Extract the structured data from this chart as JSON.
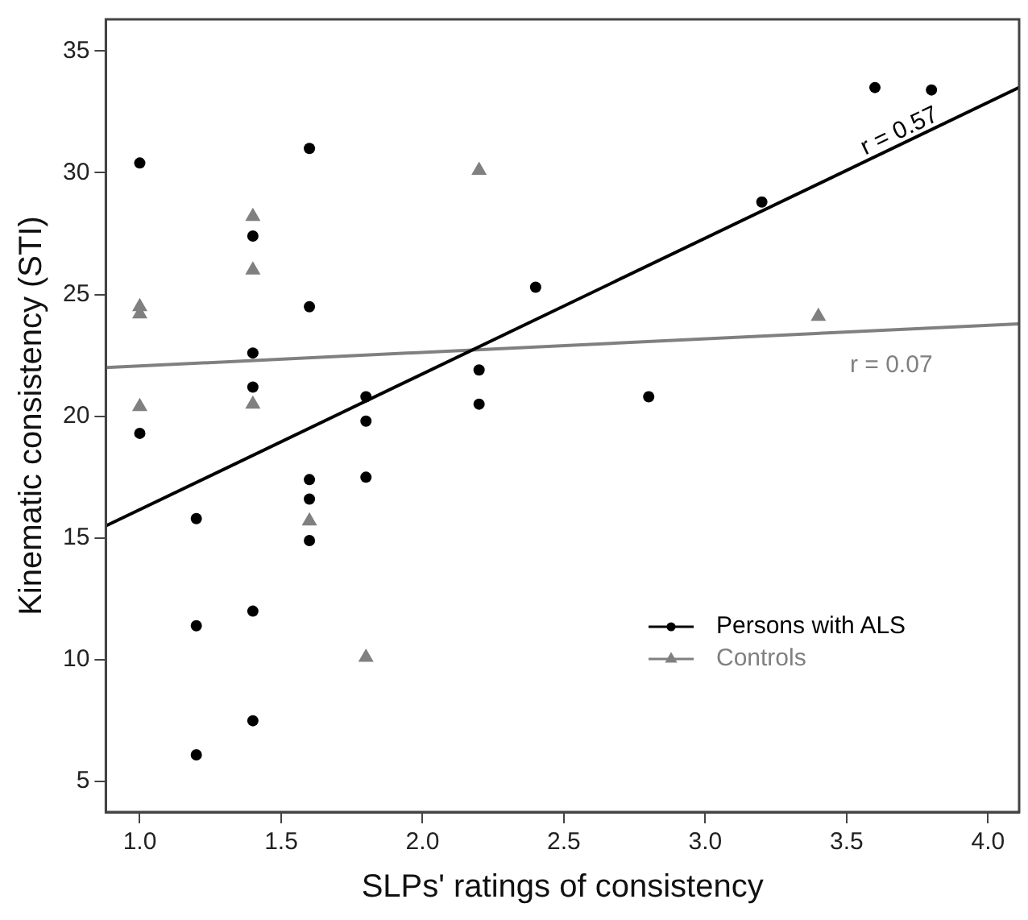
{
  "chart_data": {
    "type": "scatter",
    "xlabel": "SLPs' ratings of consistency",
    "ylabel": "Kinematic consistency (STI)",
    "xlim": [
      0.88,
      4.11
    ],
    "ylim": [
      3.75,
      36.3
    ],
    "xticks": [
      {
        "value": 1,
        "label": "1.0"
      },
      {
        "value": 1.5,
        "label": "1.5"
      },
      {
        "value": 2,
        "label": "2.0"
      },
      {
        "value": 2.5,
        "label": "2.5"
      },
      {
        "value": 3,
        "label": "3.0"
      },
      {
        "value": 3.5,
        "label": "3.5"
      },
      {
        "value": 4,
        "label": "4.0"
      }
    ],
    "yticks": [
      5,
      10,
      15,
      20,
      25,
      30,
      35
    ],
    "grid": false,
    "legend": "bottom right",
    "series": [
      {
        "name": "Persons with ALS",
        "color": "#000000",
        "marker": "circle",
        "x": [
          1.0,
          1.0,
          1.2,
          1.2,
          1.2,
          1.4,
          1.4,
          1.4,
          1.4,
          1.4,
          1.6,
          1.6,
          1.6,
          1.6,
          1.6,
          1.8,
          1.8,
          1.8,
          2.2,
          2.2,
          2.4,
          2.8,
          3.2,
          3.6,
          3.8
        ],
        "values": [
          30.4,
          19.3,
          15.8,
          11.4,
          6.1,
          27.4,
          22.6,
          21.2,
          12.0,
          7.5,
          31.0,
          24.5,
          17.4,
          16.6,
          14.9,
          20.8,
          19.8,
          17.5,
          21.9,
          20.5,
          25.3,
          20.8,
          28.8,
          33.5,
          33.4
        ]
      },
      {
        "name": "Controls",
        "color": "#808080",
        "marker": "triangle",
        "x": [
          1.0,
          1.0,
          1.0,
          1.4,
          1.4,
          1.4,
          1.6,
          1.8,
          2.2,
          3.4
        ],
        "values": [
          24.5,
          24.2,
          20.4,
          28.2,
          26.0,
          20.5,
          15.7,
          10.1,
          30.1,
          24.1
        ]
      },
      {
        "type": "line",
        "color": "#000000",
        "marker": "none",
        "x": [
          0.88,
          4.11
        ],
        "values": [
          15.5,
          33.5
        ]
      },
      {
        "type": "line",
        "color": "#808080",
        "marker": "none",
        "x": [
          0.88,
          4.11
        ],
        "values": [
          22.0,
          23.8
        ]
      }
    ],
    "annotations": [
      "r = 0.57",
      "r = 0.07"
    ]
  }
}
